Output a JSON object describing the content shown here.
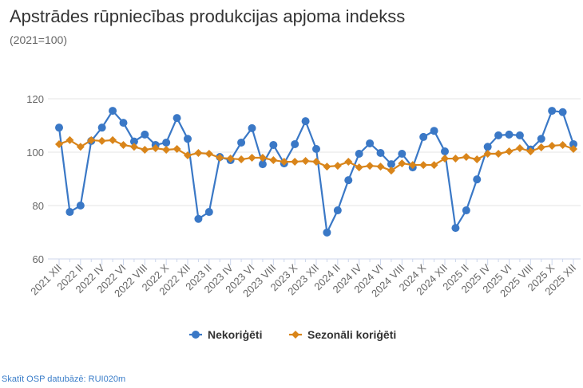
{
  "chart_data": {
    "type": "line",
    "title": "Apstrādes rūpniecības produkcijas apjoma indekss",
    "subtitle": "(2021=100)",
    "ylim": [
      60,
      120
    ],
    "yticks": [
      60,
      80,
      100,
      120
    ],
    "grid": true,
    "legend_position": "bottom",
    "x": [
      "2021 XII",
      "2022 I",
      "2022 II",
      "2022 III",
      "2022 IV",
      "2022 V",
      "2022 VI",
      "2022 VII",
      "2022 VIII",
      "2022 IX",
      "2022 X",
      "2022 XI",
      "2022 XII",
      "2023 I",
      "2023 II",
      "2023 III",
      "2023 IV",
      "2023 V",
      "2023 VI",
      "2023 VII",
      "2023 VIII",
      "2023 IX",
      "2023 X",
      "2023 XI",
      "2023 XII",
      "2024 I",
      "2024 II",
      "2024 III",
      "2024 IV",
      "2024 V",
      "2024 VI",
      "2024 VII",
      "2024 VIII",
      "2024 IX",
      "2024 X",
      "2024 XI",
      "2024 XII",
      "2025 I",
      "2025 II",
      "2025 III",
      "2025 IV",
      "2025 V",
      "2025 VI",
      "2025 VII",
      "2025 VIII",
      "2025 IX",
      "2025 X",
      "2025 XI",
      "2025 XII"
    ],
    "xtick_labels": [
      "2021 XII",
      "2022 II",
      "2022 IV",
      "2022 VI",
      "2022 VIII",
      "2022 X",
      "2022 XII",
      "2023 II",
      "2023 IV",
      "2023 VI",
      "2023 VIII",
      "2023 X",
      "2023 XII",
      "2024 II",
      "2024 IV",
      "2024 VI",
      "2024 VIII",
      "2024 X",
      "2024 XII",
      "2025 II",
      "2025 IV",
      "2025 VI",
      "2025 VIII",
      "2025 X",
      "2025 XII"
    ],
    "series": [
      {
        "name": "Nekoriģēti",
        "color": "#3a78c6",
        "marker": "circle",
        "values": [
          109.2,
          77.6,
          80,
          104.2,
          109.2,
          115.5,
          111,
          104,
          106.6,
          102.7,
          103.6,
          112.8,
          105,
          75,
          77.6,
          98.2,
          97,
          103.6,
          109,
          95.5,
          102.7,
          95.8,
          103,
          111.6,
          101.2,
          69.9,
          78.2,
          89.5,
          99.4,
          103.3,
          99.7,
          95.5,
          99.4,
          94.3,
          105.7,
          108,
          100.3,
          71.6,
          78.2,
          89.8,
          102,
          106.3,
          106.6,
          106.3,
          101,
          105,
          115.5,
          115,
          103
        ]
      },
      {
        "name": "Sezonāli koriģēti",
        "color": "#d9851a",
        "marker": "diamond",
        "values": [
          103,
          104.5,
          102,
          104.5,
          104.2,
          104.5,
          102.7,
          102,
          100.9,
          101.5,
          100.9,
          101.2,
          98.8,
          99.7,
          99.4,
          97.9,
          97.6,
          97.3,
          97.9,
          97.9,
          97,
          96.4,
          96.4,
          96.7,
          96.4,
          94.6,
          94.9,
          96.4,
          94.3,
          94.9,
          94.6,
          93.1,
          95.8,
          95.2,
          95.2,
          95.2,
          97.6,
          97.6,
          98.2,
          97.3,
          99.4,
          99.4,
          100.3,
          101.5,
          100.3,
          101.8,
          102.4,
          102.7,
          101.2
        ]
      }
    ]
  },
  "source_link": "Skatīt OSP datubāzē: RUI020m"
}
